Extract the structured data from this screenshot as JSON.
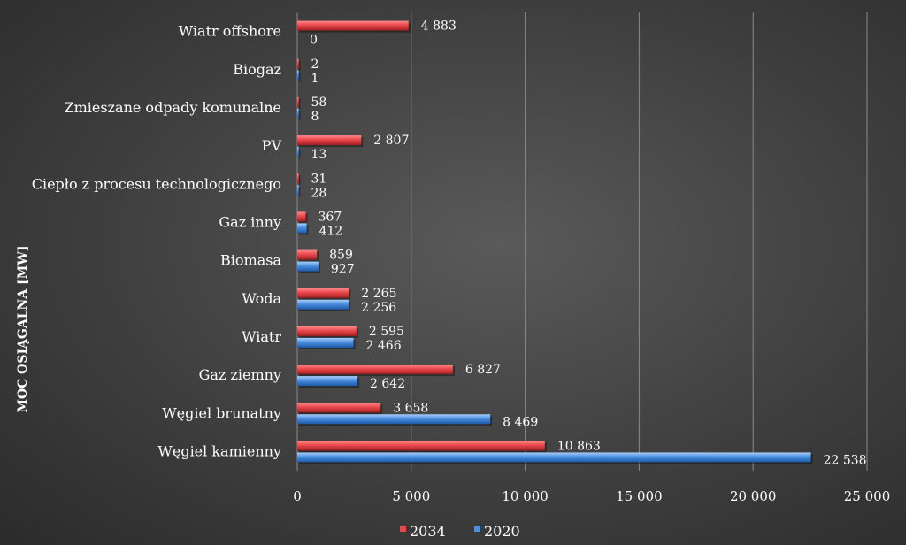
{
  "chart_data": {
    "type": "bar",
    "orientation": "horizontal",
    "categories": [
      "Węgiel kamienny",
      "Węgiel brunatny",
      "Gaz ziemny",
      "Wiatr",
      "Woda",
      "Biomasa",
      "Gaz inny",
      "Ciepło z procesu technologicznego",
      "PV",
      "Zmieszane odpady komunalne",
      "Biogaz",
      "Wiatr offshore"
    ],
    "series": [
      {
        "name": "2034",
        "color": "#e8474a",
        "values": [
          10863,
          3658,
          6827,
          2595,
          2265,
          859,
          367,
          31,
          2807,
          58,
          2,
          4883
        ],
        "labels": [
          "10 863",
          "3 658",
          "6 827",
          "2 595",
          "2 265",
          "859",
          "367",
          "31",
          "2 807",
          "58",
          "2",
          "4 883"
        ]
      },
      {
        "name": "2020",
        "color": "#4a8fe0",
        "values": [
          22538,
          8469,
          2642,
          2466,
          2256,
          927,
          412,
          28,
          13,
          8,
          1,
          0
        ],
        "labels": [
          "22 538",
          "8 469",
          "2 642",
          "2 466",
          "2 256",
          "927",
          "412",
          "28",
          "13",
          "8",
          "1",
          "0"
        ]
      }
    ],
    "xlim": [
      0,
      25000
    ],
    "xticks": [
      0,
      5000,
      10000,
      15000,
      20000,
      25000
    ],
    "xtick_labels": [
      "0",
      "5 000",
      "10 000",
      "15 000",
      "20 000",
      "25 000"
    ],
    "ylabel": "MOC OSIĄGALNA [MW]",
    "xlabel": "",
    "title": "",
    "grid": true,
    "legend_position": "bottom"
  }
}
